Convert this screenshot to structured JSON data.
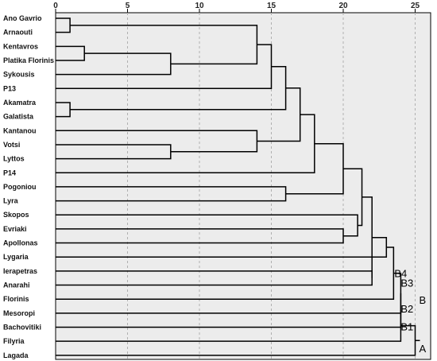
{
  "chart_data": {
    "type": "dendrogram",
    "title": "",
    "xlabel": "",
    "ylabel": "",
    "xlim": [
      0,
      25
    ],
    "x_ticks": [
      0,
      5,
      10,
      15,
      20,
      25
    ],
    "grid": "vertical dashed",
    "colors": {
      "plot_bg": "#ececec",
      "branch": "#000000",
      "grid": "#b0b0b0"
    },
    "leaves": [
      "Ano Gavrio",
      "Arnaouti",
      "Kentavros",
      "Platika Florinis",
      "Sykousis",
      "P13",
      "Akamatra",
      "Galatista",
      "Kantanou",
      "Votsi",
      "Lyttos",
      "P14",
      "Pogoniou",
      "Lyra",
      "Skopos",
      "Evriaki",
      "Apollonas",
      "Lygaria",
      "Ierapetras",
      "Anarahi",
      "Florinis",
      "Mesoropi",
      "Bachovitiki",
      "Filyria",
      "Lagada"
    ],
    "merges": [
      {
        "id": "m1",
        "a": {
          "leaf": 0
        },
        "b": {
          "leaf": 1
        },
        "height": 1
      },
      {
        "id": "m2",
        "a": {
          "leaf": 2
        },
        "b": {
          "leaf": 3
        },
        "height": 2
      },
      {
        "id": "m3",
        "a": {
          "node": "m2"
        },
        "b": {
          "leaf": 4
        },
        "height": 8
      },
      {
        "id": "m4",
        "a": {
          "node": "m1"
        },
        "b": {
          "node": "m3"
        },
        "height": 14
      },
      {
        "id": "m5",
        "a": {
          "node": "m4"
        },
        "b": {
          "leaf": 5
        },
        "height": 15
      },
      {
        "id": "m6",
        "a": {
          "leaf": 6
        },
        "b": {
          "leaf": 7
        },
        "height": 1
      },
      {
        "id": "m7",
        "a": {
          "node": "m5"
        },
        "b": {
          "node": "m6"
        },
        "height": 16
      },
      {
        "id": "m8",
        "a": {
          "leaf": 9
        },
        "b": {
          "leaf": 10
        },
        "height": 8
      },
      {
        "id": "m9",
        "a": {
          "leaf": 8
        },
        "b": {
          "node": "m8"
        },
        "height": 14
      },
      {
        "id": "m10",
        "a": {
          "node": "m7"
        },
        "b": {
          "node": "m9"
        },
        "height": 17
      },
      {
        "id": "m11",
        "a": {
          "node": "m10"
        },
        "b": {
          "leaf": 11
        },
        "height": 18
      },
      {
        "id": "m12",
        "a": {
          "leaf": 12
        },
        "b": {
          "leaf": 13
        },
        "height": 16
      },
      {
        "id": "m13",
        "a": {
          "node": "m11"
        },
        "b": {
          "node": "m12"
        },
        "height": 20
      },
      {
        "id": "m14",
        "a": {
          "leaf": 15
        },
        "b": {
          "leaf": 16
        },
        "height": 20
      },
      {
        "id": "m15",
        "a": {
          "leaf": 14
        },
        "b": {
          "node": "m14"
        },
        "height": 21
      },
      {
        "id": "m16",
        "a": {
          "node": "m13"
        },
        "b": {
          "node": "m15"
        },
        "height": 21.3
      },
      {
        "id": "m17",
        "a": {
          "leaf": 18
        },
        "b": {
          "leaf": 19
        },
        "height": 22
      },
      {
        "id": "m18",
        "a": {
          "node": "m16"
        },
        "b": {
          "node": "m17"
        },
        "height": 22
      },
      {
        "id": "m19",
        "a": {
          "leaf": 17
        },
        "b": {
          "node": "m18"
        },
        "height": 23
      },
      {
        "id": "m20",
        "a": {
          "node": "m19"
        },
        "b": {
          "leaf": 20
        },
        "height": 23.5
      },
      {
        "id": "m21",
        "a": {
          "node": "m20"
        },
        "b": {
          "leaf": 21
        },
        "height": 24
      },
      {
        "id": "m22",
        "a": {
          "node": "m21"
        },
        "b": {
          "leaf": 22
        },
        "height": 24
      },
      {
        "id": "m23",
        "a": {
          "node": "m22"
        },
        "b": {
          "leaf": 23
        },
        "height": 24
      },
      {
        "id": "m24",
        "a": {
          "node": "m23"
        },
        "b": {
          "leaf": 24
        },
        "height": 25
      }
    ],
    "annotations": [
      {
        "text": "B4",
        "node": "m20"
      },
      {
        "text": "B3",
        "node": "m21"
      },
      {
        "text": "B2",
        "node": "m22"
      },
      {
        "text": "B1",
        "node": "m23"
      },
      {
        "text": "B",
        "node": "m24"
      },
      {
        "text": "A",
        "node": "m24"
      }
    ]
  }
}
